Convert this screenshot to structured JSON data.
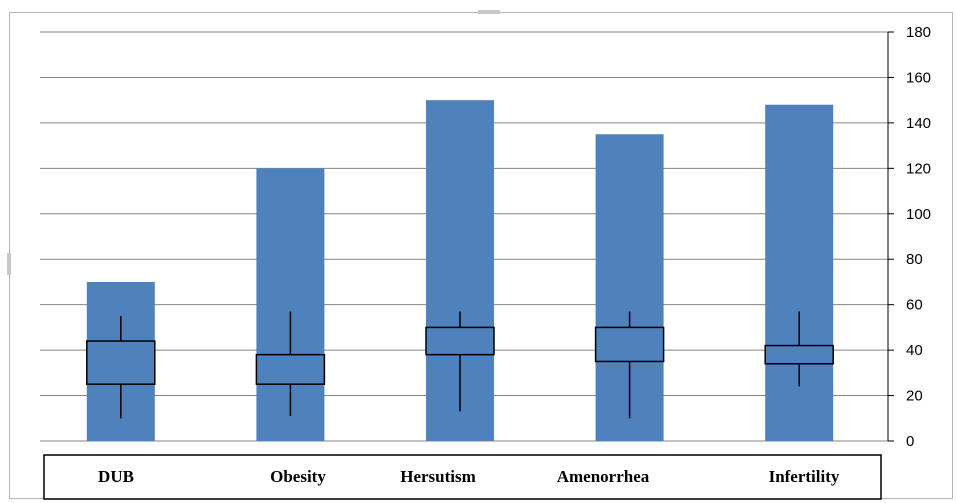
{
  "chart_data": {
    "type": "bar",
    "categories": [
      "DUB",
      "Obesity",
      "Hersutism",
      "Amenorrhea",
      "Infertility"
    ],
    "values": [
      70,
      120,
      150,
      135,
      148
    ],
    "boxplot": [
      {
        "min": 10,
        "q1": 25,
        "q3": 44,
        "max": 55
      },
      {
        "min": 11,
        "q1": 25,
        "q3": 38,
        "max": 57
      },
      {
        "min": 13,
        "q1": 38,
        "q3": 50,
        "max": 57
      },
      {
        "min": 10,
        "q1": 35,
        "q3": 50,
        "max": 57
      },
      {
        "min": 24,
        "q1": 34,
        "q3": 42,
        "max": 57
      }
    ],
    "ylim": [
      0,
      180
    ],
    "yticks": [
      0,
      20,
      40,
      60,
      80,
      100,
      120,
      140,
      160,
      180
    ],
    "y_axis_side": "right",
    "grid": true,
    "title": "",
    "xlabel": "",
    "ylabel": "",
    "colors": {
      "bar": "#4F81BD",
      "grid": "#868686",
      "box": "#000000"
    }
  }
}
